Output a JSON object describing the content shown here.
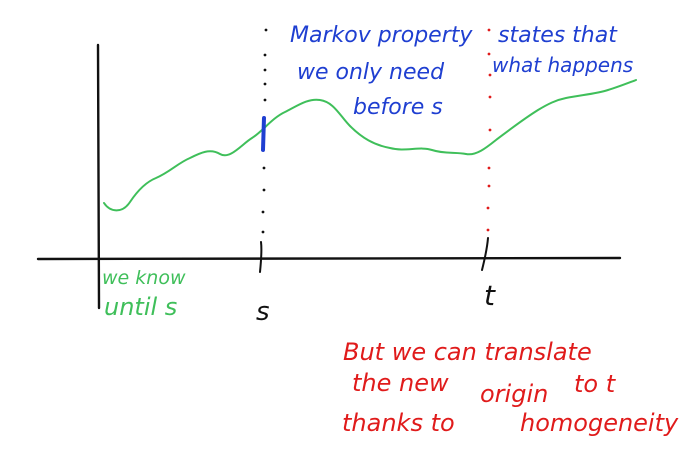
{
  "colors": {
    "ink": "#111111",
    "path": "#3fbf5a",
    "markov_note": "#1f3fd1",
    "homogeneity_note": "#e01b1b"
  },
  "labels": {
    "time_s": "s",
    "time_t": "t",
    "we_know": "we know",
    "until_s": "until s"
  },
  "notes": {
    "markov": [
      "Markov property",
      "we only need",
      "before s"
    ],
    "states_that": [
      "states that",
      "what happens"
    ],
    "homogeneity": [
      "But we can  translate",
      "the new",
      "origin",
      "to t",
      "thanks to",
      "homogeneity"
    ]
  }
}
